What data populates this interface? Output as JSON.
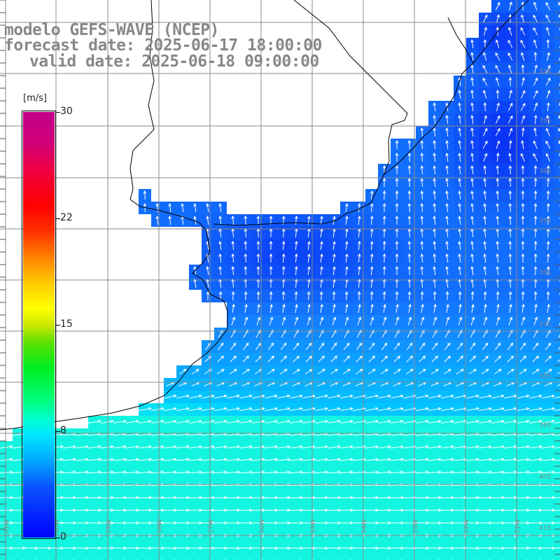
{
  "title": {
    "line1": "modelo GEFS-WAVE (NCEP)",
    "line2": "forecast date: 2025-06-17 18:00:00",
    "line3": "valid date: 2025-06-18 09:00:00"
  },
  "colorbar": {
    "unit": "[m/s]",
    "min": 0,
    "max": 30,
    "ticks": [
      {
        "label": "30",
        "value": 30
      },
      {
        "label": "22",
        "value": 22.5
      },
      {
        "label": "15",
        "value": 15
      },
      {
        "label": "8",
        "value": 7.5
      },
      {
        "label": "0",
        "value": 0
      }
    ]
  },
  "lon_labels": [
    "61W",
    "60W",
    "59W",
    "58W",
    "57W",
    "56W",
    "55W",
    "54W",
    "53W",
    "52W",
    "51W"
  ],
  "lat_labels": [
    "32S",
    "33S",
    "34S",
    "35S",
    "36S",
    "37S",
    "38S",
    "39S",
    "40S",
    "41S"
  ],
  "colors": {
    "land": "#ffffff",
    "grid": "#888888",
    "coast": "#000000",
    "arrow": "#ffffff",
    "label_gray": "#888888"
  }
}
